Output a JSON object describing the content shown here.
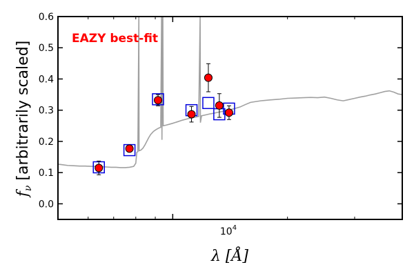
{
  "chart_data": {
    "type": "scatter",
    "x_scale": "log",
    "xlim": [
      5000,
      40000
    ],
    "ylim": [
      -0.05,
      0.6
    ],
    "xlabel": "λ [Å]",
    "ylabel_math": "f",
    "ylabel_sub": "ν",
    "ylabel_text": " [arbitrarily scaled]",
    "y_ticks": [
      0.0,
      0.1,
      0.2,
      0.3,
      0.4,
      0.5,
      0.6
    ],
    "y_tick_labels": [
      "0.0",
      "0.1",
      "0.2",
      "0.3",
      "0.4",
      "0.5",
      "0.6"
    ],
    "x_major_tick": 10000,
    "x_major_tick_base": "10",
    "x_major_tick_exp": "4",
    "x_minor_ticks": [
      6000,
      7000,
      8000,
      9000,
      20000,
      30000
    ],
    "annotation": {
      "text": "EAZY best-fit",
      "color": "#ff0000"
    },
    "colors": {
      "model": "#a0a0a0",
      "observed_fill": "#ff0000",
      "model_box": "#0000dd",
      "errorbar": "#000000"
    },
    "observed": [
      {
        "x": 6400,
        "y": 0.115,
        "err": 0.022
      },
      {
        "x": 7700,
        "y": 0.177,
        "err": 0.005
      },
      {
        "x": 9150,
        "y": 0.332,
        "err": 0.018
      },
      {
        "x": 11200,
        "y": 0.287,
        "err": 0.025
      },
      {
        "x": 12400,
        "y": 0.404,
        "err": 0.045
      },
      {
        "x": 13250,
        "y": 0.315,
        "err": 0.038
      },
      {
        "x": 14050,
        "y": 0.292,
        "err": 0.022
      }
    ],
    "model_photometry": [
      {
        "x": 6400,
        "y": 0.117
      },
      {
        "x": 7700,
        "y": 0.172
      },
      {
        "x": 9150,
        "y": 0.335
      },
      {
        "x": 11200,
        "y": 0.3
      },
      {
        "x": 12400,
        "y": 0.323
      },
      {
        "x": 13250,
        "y": 0.287
      },
      {
        "x": 14050,
        "y": 0.305
      }
    ],
    "model_spectrum": [
      [
        5000,
        0.127
      ],
      [
        5150,
        0.125
      ],
      [
        5300,
        0.123
      ],
      [
        5500,
        0.122
      ],
      [
        5700,
        0.121
      ],
      [
        5900,
        0.121
      ],
      [
        6100,
        0.12
      ],
      [
        6300,
        0.12
      ],
      [
        6500,
        0.119
      ],
      [
        6700,
        0.118
      ],
      [
        6900,
        0.117
      ],
      [
        7100,
        0.117
      ],
      [
        7300,
        0.116
      ],
      [
        7500,
        0.116
      ],
      [
        7700,
        0.117
      ],
      [
        7900,
        0.12
      ],
      [
        8000,
        0.13
      ],
      [
        8050,
        0.165
      ],
      [
        8100,
        0.167
      ],
      [
        8150,
        0.6
      ],
      [
        8160,
        0.17
      ],
      [
        8250,
        0.172
      ],
      [
        8350,
        0.178
      ],
      [
        8450,
        0.188
      ],
      [
        8550,
        0.2
      ],
      [
        8650,
        0.212
      ],
      [
        8750,
        0.222
      ],
      [
        8900,
        0.232
      ],
      [
        9050,
        0.238
      ],
      [
        9200,
        0.243
      ],
      [
        9300,
        0.245
      ],
      [
        9350,
        0.6
      ],
      [
        9370,
        0.205
      ],
      [
        9400,
        0.6
      ],
      [
        9420,
        0.6
      ],
      [
        9440,
        0.25
      ],
      [
        9600,
        0.252
      ],
      [
        9800,
        0.255
      ],
      [
        10000,
        0.258
      ],
      [
        10300,
        0.263
      ],
      [
        10600,
        0.268
      ],
      [
        10900,
        0.272
      ],
      [
        11200,
        0.276
      ],
      [
        11500,
        0.278
      ],
      [
        11700,
        0.28
      ],
      [
        11800,
        0.6
      ],
      [
        11820,
        0.26
      ],
      [
        11900,
        0.282
      ],
      [
        12200,
        0.285
      ],
      [
        12500,
        0.288
      ],
      [
        12800,
        0.29
      ],
      [
        13100,
        0.293
      ],
      [
        13500,
        0.296
      ],
      [
        14000,
        0.3
      ],
      [
        14500,
        0.305
      ],
      [
        15000,
        0.31
      ],
      [
        15500,
        0.318
      ],
      [
        16000,
        0.325
      ],
      [
        17000,
        0.33
      ],
      [
        18000,
        0.333
      ],
      [
        19000,
        0.335
      ],
      [
        20000,
        0.338
      ],
      [
        21000,
        0.339
      ],
      [
        22000,
        0.34
      ],
      [
        23000,
        0.341
      ],
      [
        24000,
        0.34
      ],
      [
        25000,
        0.342
      ],
      [
        26000,
        0.338
      ],
      [
        27000,
        0.333
      ],
      [
        28000,
        0.33
      ],
      [
        29000,
        0.334
      ],
      [
        30000,
        0.338
      ],
      [
        31000,
        0.342
      ],
      [
        32000,
        0.345
      ],
      [
        33000,
        0.349
      ],
      [
        34000,
        0.352
      ],
      [
        35000,
        0.356
      ],
      [
        36000,
        0.36
      ],
      [
        37000,
        0.362
      ],
      [
        38000,
        0.358
      ],
      [
        39000,
        0.352
      ],
      [
        40000,
        0.35
      ]
    ]
  }
}
